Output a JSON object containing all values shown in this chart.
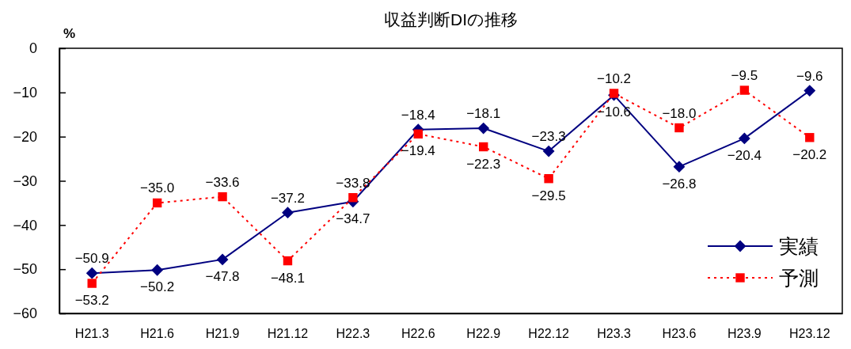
{
  "chart_data": {
    "type": "line",
    "title": "収益判断DIの推移",
    "ylabel": "%",
    "categories": [
      "H21.3",
      "H21.6",
      "H21.9",
      "H21.12",
      "H22.3",
      "H22.6",
      "H22.9",
      "H22.12",
      "H23.3",
      "H23.6",
      "H23.9",
      "H23.12"
    ],
    "ylim": [
      -60,
      0
    ],
    "yticks": [
      0,
      {
        "value": -10,
        "label": "−10"
      },
      {
        "value": -20,
        "label": "−20"
      },
      {
        "value": -30,
        "label": "−30"
      },
      {
        "value": -40,
        "label": "−40"
      },
      {
        "value": -50,
        "label": "−50"
      },
      {
        "value": -60,
        "label": "−60"
      }
    ],
    "legend": "bottom right",
    "series": [
      {
        "name": "実績",
        "color": "#000080",
        "marker": "diamond",
        "line_style": "solid",
        "values": [
          -50.9,
          -50.2,
          -47.8,
          -37.2,
          -34.7,
          -18.4,
          -18.1,
          -23.3,
          -10.6,
          -26.8,
          -20.4,
          -9.6
        ],
        "value_labels": [
          "−50.9",
          "−50.2",
          "−47.8",
          "−37.2",
          "−34.7",
          "−18.4",
          "−18.1",
          "−23.3",
          "−10.6",
          "−26.8",
          "−20.4",
          "−9.6"
        ]
      },
      {
        "name": "予測",
        "color": "#ff0000",
        "marker": "square",
        "line_style": "dotted",
        "values": [
          -53.2,
          -35.0,
          -33.6,
          -48.1,
          -33.8,
          -19.4,
          -22.3,
          -29.5,
          -10.2,
          -18.0,
          -9.5,
          -20.2
        ],
        "value_labels": [
          "−53.2",
          "−35.0",
          "−33.6",
          "−48.1",
          "−33.8",
          "−19.4",
          "−22.3",
          "−29.5",
          "−10.2",
          "−18.0",
          "−9.5",
          "−20.2"
        ]
      }
    ]
  }
}
